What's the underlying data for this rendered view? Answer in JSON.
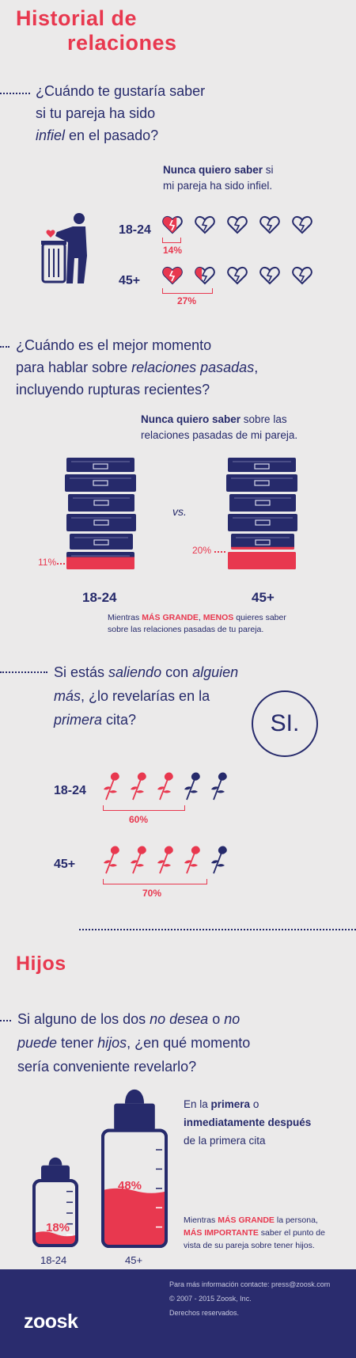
{
  "title": {
    "line1": "Historial de",
    "line2": "relaciones"
  },
  "q1": {
    "line1": "¿Cuándo te gustaría saber",
    "line2": "si tu pareja ha sido",
    "line3_italic": "infiel",
    "line3_rest": " en el pasado?",
    "note_bold": "Nunca quiero saber",
    "note_rest": " si",
    "note_line2": "mi pareja ha sido infiel.",
    "rows": [
      {
        "age": "18-24",
        "pct": "14%",
        "fraction": 0.14
      },
      {
        "age": "45+",
        "pct": "27%",
        "fraction": 0.27
      }
    ]
  },
  "q2": {
    "line1": "¿Cuándo es el mejor momento",
    "line2_start": "para hablar sobre ",
    "line2_italic": "relaciones pasadas",
    "line2_end": ",",
    "line3": "incluyendo rupturas recientes?",
    "note_bold": "Nunca quiero saber",
    "note_rest": " sobre las",
    "note_line2": "relaciones pasadas de mi pareja.",
    "vs": "vs.",
    "left": {
      "age": "18-24",
      "pct": "11%",
      "fraction": 0.11
    },
    "right": {
      "age": "45+",
      "pct": "20%",
      "fraction": 0.2
    },
    "foot_start": "Mientras ",
    "foot_big": "MÁS GRANDE",
    "foot_mid": ", ",
    "foot_less": "MENOS",
    "foot_end": " quieres saber",
    "foot_line2": "sobre las relaciones pasadas de tu pareja."
  },
  "q3": {
    "line1_start": "Si estás ",
    "line1_italic1": "saliendo",
    "line1_mid": " con ",
    "line1_italic2": "alguien",
    "line2_italic": "más",
    "line2_rest": ", ¿lo revelarías en la",
    "line3_italic": "primera",
    "line3_rest": " cita?",
    "answer": "SI.",
    "rows": [
      {
        "age": "18-24",
        "pct": "60%",
        "fraction": 0.6
      },
      {
        "age": "45+",
        "pct": "70%",
        "fraction": 0.7
      }
    ]
  },
  "hijos": {
    "title": "Hijos",
    "line1_start": "Si alguno de los dos ",
    "line1_italic": "no desea",
    "line1_mid": " o ",
    "line1_italic2": "no",
    "line2_italic": "puede",
    "line2_mid": "  tener ",
    "line2_italic2": "hijos",
    "line2_end": ", ¿en qué momento",
    "line3": "sería conveniente revelarlo?",
    "note_a": "En la ",
    "note_a_bold": "primera",
    "note_a_end": " o",
    "note_b_bold": "inmediatamente después",
    "note_c": "de la primera cita",
    "left": {
      "age": "18-24",
      "pct": "18%",
      "fraction": 0.18
    },
    "right": {
      "age": "45+",
      "pct": "48%",
      "fraction": 0.48
    },
    "foot_start": "Mientras ",
    "foot_big": "MÁS GRANDE",
    "foot_mid": " la persona,",
    "foot_imp": "MÁS IMPORTANTE",
    "foot_end": " saber el punto de",
    "foot_line3": "vista de su pareja sobre tener hijos."
  },
  "footer": {
    "logo": "zoosk",
    "info": "Para más información contacte: press@zoosk.com",
    "copyright": "© 2007 - 2015 Zoosk, Inc.",
    "rights": "Derechos reservados."
  },
  "colors": {
    "red": "#e8384f",
    "navy": "#262a6b",
    "background": "#ebeaea"
  }
}
